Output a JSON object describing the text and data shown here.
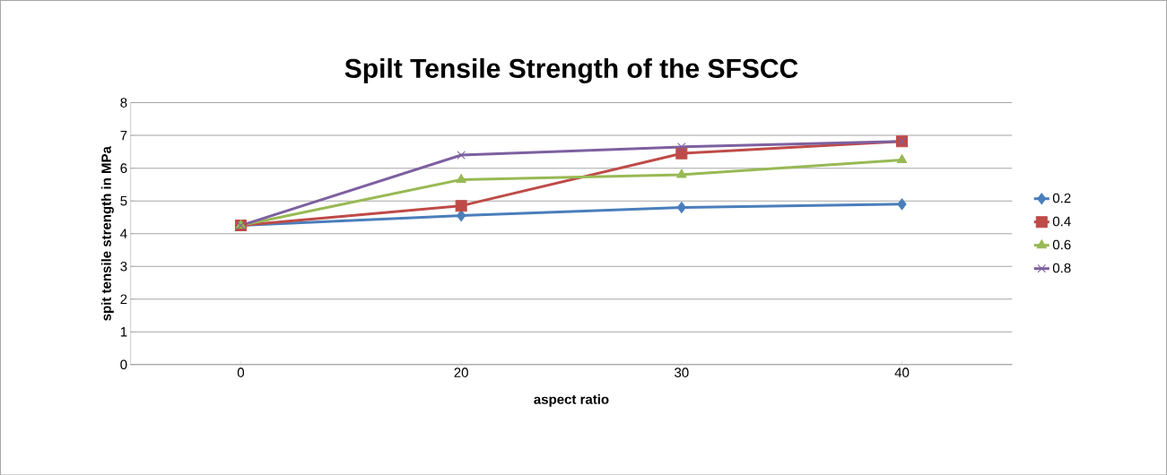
{
  "chart_data": {
    "type": "line",
    "title": "Spilt Tensile Strength of the SFSCC",
    "xlabel": "aspect ratio",
    "ylabel": "spit tensile strength in MPa",
    "categories": [
      "0",
      "20",
      "30",
      "40"
    ],
    "series": [
      {
        "name": "0.2",
        "color": "#4a7ebb",
        "marker": "diamond",
        "values": [
          4.25,
          4.55,
          4.8,
          4.9
        ]
      },
      {
        "name": "0.4",
        "color": "#be4b48",
        "marker": "square",
        "values": [
          4.25,
          4.85,
          6.45,
          6.82
        ]
      },
      {
        "name": "0.6",
        "color": "#98b954",
        "marker": "triangle",
        "values": [
          4.25,
          5.65,
          5.8,
          6.25
        ]
      },
      {
        "name": "0.8",
        "color": "#7d60a0",
        "marker": "cross",
        "values": [
          4.25,
          6.4,
          6.65,
          6.82
        ]
      }
    ],
    "ylim": [
      0,
      8
    ],
    "yticks": [
      0,
      1,
      2,
      3,
      4,
      5,
      6,
      7,
      8
    ],
    "grid": "y",
    "legend": "right"
  }
}
